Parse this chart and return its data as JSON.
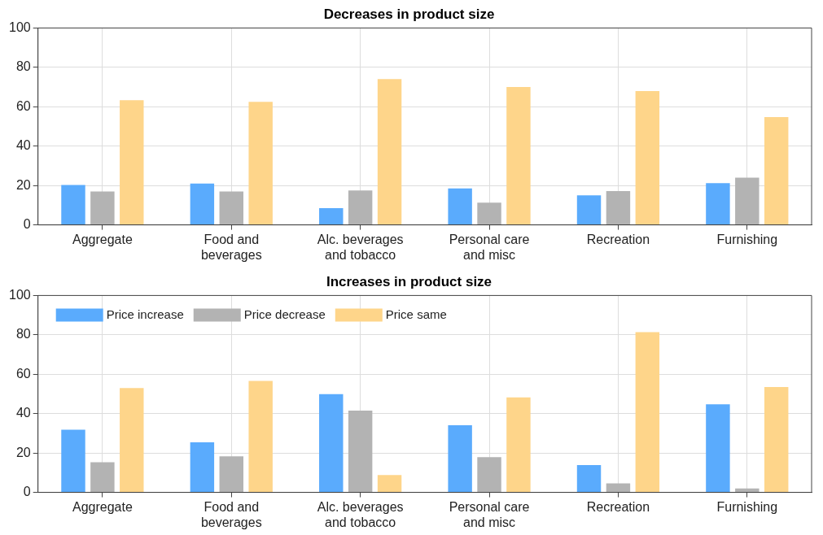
{
  "chart_data": [
    {
      "type": "bar",
      "title": "Decreases in product size",
      "categories": [
        "Aggregate",
        "Food and beverages",
        "Alc. beverages and tobacco",
        "Personal care and misc",
        "Recreation",
        "Furnishing"
      ],
      "series": [
        {
          "color": "#5aabfd",
          "values": [
            20.3,
            21,
            8.5,
            18.5,
            15,
            21.2
          ]
        },
        {
          "color": "#b3b3b3",
          "values": [
            17,
            17,
            17.5,
            11.3,
            17.2,
            24
          ]
        },
        {
          "color": "#fed58a",
          "values": [
            63.3,
            62.5,
            74,
            70,
            68,
            54.7
          ]
        }
      ],
      "ylim": [
        0,
        100
      ],
      "yticks": [
        0,
        20,
        40,
        60,
        80,
        100
      ],
      "grid": true
    },
    {
      "type": "bar",
      "title": "Increases in product size",
      "categories": [
        "Aggregate",
        "Food and beverages",
        "Alc. beverages and tobacco",
        "Personal care and misc",
        "Recreation",
        "Furnishing"
      ],
      "series": [
        {
          "name": "Price increase",
          "color": "#5aabfd",
          "values": [
            31.8,
            25.4,
            49.9,
            34.1,
            13.9,
            44.7
          ]
        },
        {
          "name": "Price decrease",
          "color": "#b3b3b3",
          "values": [
            15.3,
            18.3,
            41.5,
            17.9,
            4.6,
            2
          ]
        },
        {
          "name": "Price same",
          "color": "#fed58a",
          "values": [
            53,
            56.6,
            8.8,
            48.2,
            81.4,
            53.5
          ]
        }
      ],
      "ylim": [
        0,
        100
      ],
      "yticks": [
        0,
        20,
        40,
        60,
        80,
        100
      ],
      "grid": true,
      "legend": "top left"
    }
  ]
}
